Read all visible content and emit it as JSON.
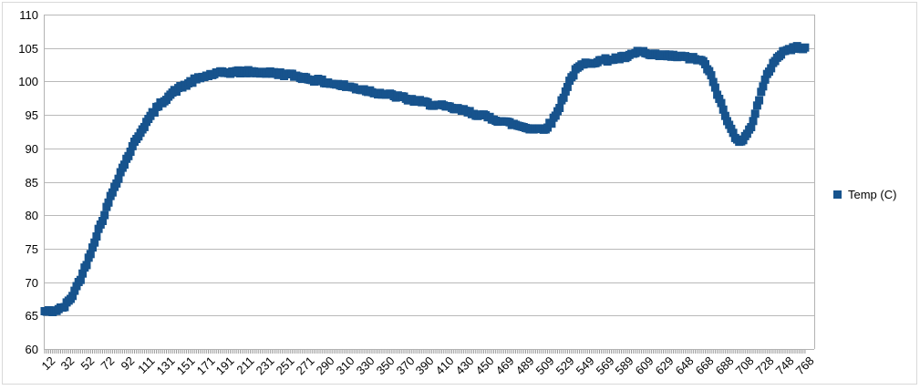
{
  "chart_data": {
    "type": "scatter",
    "title": "",
    "xlabel": "",
    "ylabel": "",
    "legend_position": "right",
    "grid": "horizontal",
    "marker": "square",
    "ylim": [
      60,
      110
    ],
    "xlim": [
      12,
      775
    ],
    "y_tick_labels": [
      "60",
      "65",
      "70",
      "75",
      "80",
      "85",
      "90",
      "95",
      "100",
      "105",
      "110"
    ],
    "x_tick_labels": [
      "12",
      "32",
      "52",
      "72",
      "92",
      "111",
      "131",
      "151",
      "171",
      "191",
      "211",
      "231",
      "251",
      "271",
      "290",
      "310",
      "330",
      "350",
      "370",
      "390",
      "410",
      "430",
      "450",
      "469",
      "489",
      "509",
      "529",
      "549",
      "569",
      "589",
      "609",
      "629",
      "648",
      "668",
      "688",
      "708",
      "728",
      "748",
      "768"
    ],
    "point_spacing": 2,
    "series": [
      {
        "name": "Temp (C)",
        "color": "#17538d",
        "control_points": [
          [
            12,
            65.6
          ],
          [
            16,
            65.6
          ],
          [
            20,
            65.7
          ],
          [
            24,
            65.8
          ],
          [
            28,
            66.0
          ],
          [
            32,
            66.4
          ],
          [
            36,
            67.1
          ],
          [
            40,
            68.1
          ],
          [
            44,
            69.3
          ],
          [
            48,
            70.6
          ],
          [
            52,
            72.0
          ],
          [
            56,
            73.6
          ],
          [
            60,
            75.3
          ],
          [
            64,
            77.0
          ],
          [
            68,
            78.6
          ],
          [
            72,
            80.2
          ],
          [
            76,
            81.9
          ],
          [
            80,
            83.5
          ],
          [
            84,
            85.0
          ],
          [
            88,
            86.4
          ],
          [
            92,
            87.7
          ],
          [
            96,
            89.0
          ],
          [
            100,
            90.2
          ],
          [
            105,
            91.7
          ],
          [
            111,
            93.2
          ],
          [
            116,
            94.3
          ],
          [
            121,
            95.4
          ],
          [
            126,
            96.3
          ],
          [
            131,
            97.1
          ],
          [
            136,
            97.8
          ],
          [
            141,
            98.4
          ],
          [
            146,
            98.9
          ],
          [
            151,
            99.3
          ],
          [
            156,
            99.7
          ],
          [
            161,
            100.1
          ],
          [
            166,
            100.4
          ],
          [
            171,
            100.7
          ],
          [
            176,
            100.9
          ],
          [
            181,
            101.1
          ],
          [
            186,
            101.2
          ],
          [
            191,
            101.3
          ],
          [
            201,
            101.4
          ],
          [
            211,
            101.45
          ],
          [
            221,
            101.4
          ],
          [
            231,
            101.35
          ],
          [
            241,
            101.25
          ],
          [
            251,
            101.1
          ],
          [
            261,
            100.9
          ],
          [
            271,
            100.6
          ],
          [
            280,
            100.3
          ],
          [
            290,
            100.0
          ],
          [
            300,
            99.7
          ],
          [
            310,
            99.4
          ],
          [
            320,
            99.1
          ],
          [
            330,
            98.8
          ],
          [
            340,
            98.5
          ],
          [
            350,
            98.2
          ],
          [
            360,
            97.9
          ],
          [
            370,
            97.6
          ],
          [
            380,
            97.2
          ],
          [
            390,
            96.9
          ],
          [
            400,
            96.6
          ],
          [
            410,
            96.3
          ],
          [
            420,
            96.0
          ],
          [
            430,
            95.7
          ],
          [
            440,
            95.3
          ],
          [
            450,
            94.9
          ],
          [
            460,
            94.5
          ],
          [
            469,
            94.1
          ],
          [
            479,
            93.7
          ],
          [
            489,
            93.3
          ],
          [
            499,
            93.0
          ],
          [
            505,
            92.9
          ],
          [
            509,
            92.9
          ],
          [
            513,
            93.0
          ],
          [
            517,
            93.4
          ],
          [
            521,
            94.1
          ],
          [
            525,
            95.2
          ],
          [
            529,
            96.6
          ],
          [
            533,
            98.2
          ],
          [
            537,
            99.7
          ],
          [
            541,
            100.9
          ],
          [
            545,
            101.8
          ],
          [
            549,
            102.3
          ],
          [
            553,
            102.6
          ],
          [
            557,
            102.8
          ],
          [
            561,
            102.9
          ],
          [
            565,
            103.0
          ],
          [
            569,
            103.1
          ],
          [
            579,
            103.3
          ],
          [
            589,
            103.5
          ],
          [
            597,
            103.7
          ],
          [
            603,
            104.1
          ],
          [
            607,
            104.5
          ],
          [
            611,
            104.5
          ],
          [
            615,
            104.1
          ],
          [
            619,
            103.9
          ],
          [
            629,
            103.9
          ],
          [
            639,
            103.8
          ],
          [
            648,
            103.7
          ],
          [
            658,
            103.5
          ],
          [
            666,
            103.3
          ],
          [
            672,
            102.9
          ],
          [
            676,
            102.0
          ],
          [
            680,
            100.7
          ],
          [
            684,
            99.1
          ],
          [
            688,
            97.4
          ],
          [
            692,
            95.7
          ],
          [
            696,
            94.1
          ],
          [
            700,
            92.8
          ],
          [
            704,
            91.8
          ],
          [
            708,
            91.2
          ],
          [
            712,
            91.3
          ],
          [
            716,
            92.0
          ],
          [
            720,
            93.4
          ],
          [
            724,
            95.3
          ],
          [
            728,
            97.3
          ],
          [
            732,
            99.2
          ],
          [
            736,
            100.9
          ],
          [
            740,
            102.2
          ],
          [
            744,
            103.2
          ],
          [
            748,
            103.9
          ],
          [
            752,
            104.4
          ],
          [
            756,
            104.7
          ],
          [
            760,
            104.9
          ],
          [
            764,
            105.0
          ],
          [
            768,
            105.1
          ],
          [
            772,
            105.1
          ],
          [
            774,
            105.15
          ]
        ]
      }
    ]
  },
  "legend": {
    "label": "Temp (C)"
  },
  "colors": {
    "series": "#17538d",
    "grid": "#b9b9b9",
    "axis": "#b3b3b3",
    "tick": "#999999",
    "border": "#d9d9d9",
    "text": "#000000",
    "background": "#ffffff"
  }
}
